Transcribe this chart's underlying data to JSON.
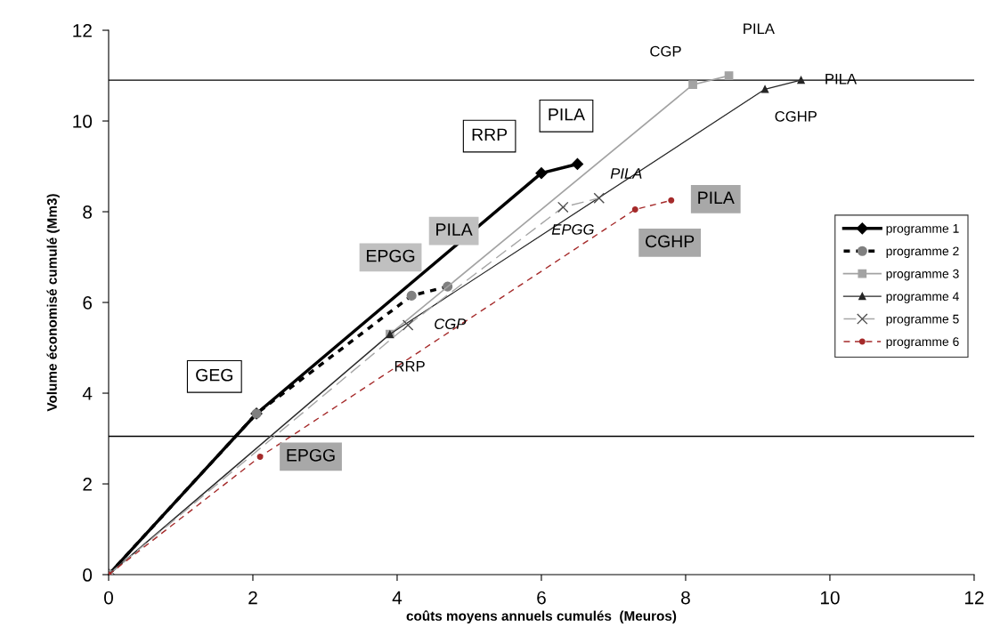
{
  "chart_data": {
    "type": "line",
    "xlabel": "coûts moyens annuels cumulés  (Meuros)",
    "ylabel": "Volume économisé cumulé (Mm3)",
    "xlim": [
      0,
      12
    ],
    "ylim": [
      0,
      12
    ],
    "xticks": [
      0,
      2,
      4,
      6,
      8,
      10,
      12
    ],
    "yticks": [
      0,
      2,
      4,
      6,
      8,
      10,
      12
    ],
    "grid": false,
    "legend": "right",
    "series": [
      {
        "name": "programme 1",
        "color": "#000000",
        "marker": "diamond",
        "line_style": "solid",
        "x": [
          0,
          2.05,
          6,
          6.5
        ],
        "values": [
          0,
          3.55,
          8.85,
          9.05
        ]
      },
      {
        "name": "programme 2",
        "color": "#808080",
        "marker": "circle",
        "line_style": "dashed",
        "x": [
          0,
          2.05,
          4.2,
          4.7
        ],
        "values": [
          0,
          3.55,
          6.15,
          6.35
        ]
      },
      {
        "name": "programme 3",
        "color": "#a3a3a3",
        "marker": "square",
        "line_style": "solid",
        "x": [
          0,
          3.9,
          8.1,
          8.6
        ],
        "values": [
          0,
          5.3,
          10.8,
          11.0
        ]
      },
      {
        "name": "programme 4",
        "color": "#262626",
        "marker": "triangle",
        "line_style": "solid",
        "x": [
          0,
          3.9,
          9.1,
          9.6
        ],
        "values": [
          0,
          5.3,
          10.7,
          10.9
        ]
      },
      {
        "name": "programme 5",
        "color": "#4d4d4d",
        "marker": "cross",
        "line_style": "dashed",
        "x": [
          0,
          4.15,
          6.3,
          6.8
        ],
        "values": [
          0,
          5.5,
          8.1,
          8.3
        ]
      },
      {
        "name": "programme 6",
        "color": "#a52a2a",
        "marker": "circle",
        "line_style": "dashed",
        "x": [
          0,
          2.1,
          7.3,
          7.8
        ],
        "values": [
          0,
          2.6,
          8.05,
          8.25
        ]
      }
    ],
    "ref_lines": [
      {
        "axis": "y",
        "value": 3.05,
        "color": "#000000"
      },
      {
        "axis": "y",
        "value": 10.9,
        "color": "#000000"
      }
    ],
    "annotations": [
      {
        "text": "GEG",
        "x": 2.05,
        "y": 3.55
      },
      {
        "text": "RRP",
        "x": 6,
        "y": 8.85
      },
      {
        "text": "PILA",
        "x": 6.5,
        "y": 9.05
      },
      {
        "text": "EPGG",
        "x": 4.2,
        "y": 6.15
      },
      {
        "text": "PILA",
        "x": 4.7,
        "y": 6.35
      },
      {
        "text": "RRP",
        "x": 3.9,
        "y": 5.3
      },
      {
        "text": "CGP",
        "x": 8.1,
        "y": 10.8
      },
      {
        "text": "PILA",
        "x": 8.6,
        "y": 11.0
      },
      {
        "text": "CGHP",
        "x": 9.1,
        "y": 10.7
      },
      {
        "text": "PILA",
        "x": 9.6,
        "y": 10.9
      },
      {
        "text": "CGP",
        "x": 4.15,
        "y": 5.5
      },
      {
        "text": "EPGG",
        "x": 6.3,
        "y": 8.1
      },
      {
        "text": "PILA",
        "x": 6.8,
        "y": 8.3
      },
      {
        "text": "EPGG",
        "x": 2.1,
        "y": 2.6
      },
      {
        "text": "CGHP",
        "x": 7.3,
        "y": 8.05
      },
      {
        "text": "PILA",
        "x": 7.8,
        "y": 8.25
      }
    ]
  }
}
